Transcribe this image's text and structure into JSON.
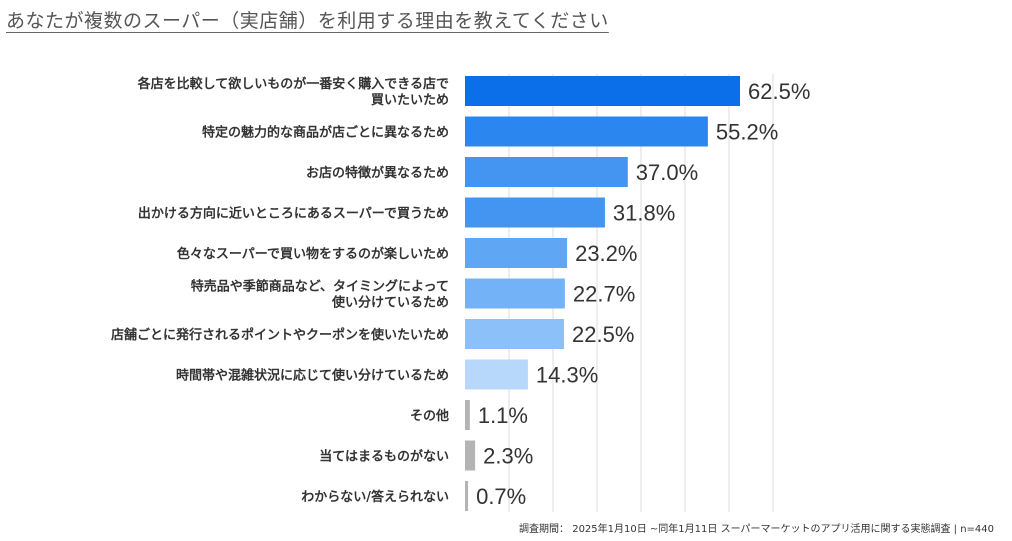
{
  "chart_data": {
    "type": "bar",
    "orientation": "horizontal",
    "title": "あなたが複数のスーパー（実店舗）を利用する理由を教えてください",
    "categories": [
      [
        "各店を比較して欲しいものが一番安く購入できる店で",
        "買いたいため"
      ],
      [
        "特定の魅力的な商品が店ごとに異なるため"
      ],
      [
        "お店の特徴が異なるため"
      ],
      [
        "出かける方向に近いところにあるスーパーで買うため"
      ],
      [
        "色々なスーパーで買い物をするのが楽しいため"
      ],
      [
        "特売品や季節商品など、タイミングによって",
        "使い分けているため"
      ],
      [
        "店舗ごとに発行されるポイントやクーポンを使いたいため"
      ],
      [
        "時間帯や混雑状況に応じて使い分けているため"
      ],
      [
        "その他"
      ],
      [
        "当てはまるものがない"
      ],
      [
        "わからない/答えられない"
      ]
    ],
    "values": [
      62.5,
      55.2,
      37.0,
      31.8,
      23.2,
      22.7,
      22.5,
      14.3,
      1.1,
      2.3,
      0.7
    ],
    "value_labels": [
      "62.5%",
      "55.2%",
      "37.0%",
      "31.8%",
      "23.2%",
      "22.7%",
      "22.5%",
      "14.3%",
      "1.1%",
      "2.3%",
      "0.7%"
    ],
    "colors": [
      "#0a6fe8",
      "#2b86f0",
      "#4495f2",
      "#4495f2",
      "#5fa6f5",
      "#74b2f7",
      "#8cc0f9",
      "#b7d8fb",
      "#b4b4b4",
      "#b4b4b4",
      "#b4b4b4"
    ],
    "xlim": [
      0,
      70
    ],
    "grid": true,
    "xlabel": "",
    "ylabel": ""
  },
  "footnote": "調査期間： 2025年1月10日 ~同年1月11日 スーパーマーケットのアプリ活用に関する実態調査 | n=440"
}
